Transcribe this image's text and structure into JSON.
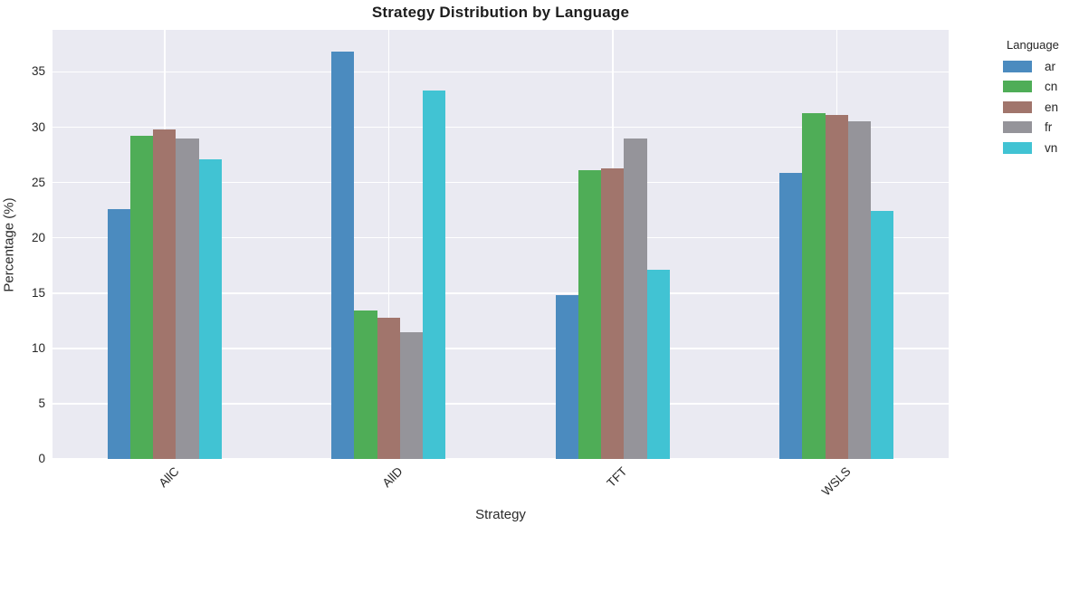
{
  "title": "Strategy Distribution by Language",
  "xlabel": "Strategy",
  "ylabel": "Percentage (%)",
  "legend": {
    "title": "Language",
    "entries": [
      {
        "label": "ar",
        "color": "#4b8bbf"
      },
      {
        "label": "cn",
        "color": "#4fad57"
      },
      {
        "label": "en",
        "color": "#a1756c"
      },
      {
        "label": "fr",
        "color": "#95949a"
      },
      {
        "label": "vn",
        "color": "#41c3d3"
      }
    ]
  },
  "chart_data": {
    "type": "bar",
    "title": "Strategy Distribution by Language",
    "xlabel": "Strategy",
    "ylabel": "Percentage (%)",
    "categories": [
      "AllC",
      "AllD",
      "TFT",
      "WSLS"
    ],
    "series": [
      {
        "name": "ar",
        "color": "#4b8bbf",
        "values": [
          22.6,
          36.8,
          14.8,
          25.9
        ]
      },
      {
        "name": "cn",
        "color": "#4fad57",
        "values": [
          29.2,
          13.4,
          26.1,
          31.3
        ]
      },
      {
        "name": "en",
        "color": "#a1756c",
        "values": [
          29.8,
          12.8,
          26.3,
          31.1
        ]
      },
      {
        "name": "fr",
        "color": "#95949a",
        "values": [
          29.0,
          11.5,
          29.0,
          30.5
        ]
      },
      {
        "name": "vn",
        "color": "#41c3d3",
        "values": [
          27.1,
          33.3,
          17.1,
          22.4
        ]
      }
    ],
    "ylim": [
      0,
      38.8
    ],
    "yticks": [
      0,
      5,
      10,
      15,
      20,
      25,
      30,
      35
    ],
    "grid": true,
    "grid_color": "#ffffff",
    "plot_bg": "#eaeaf2",
    "legend_position": "right",
    "legend_title": "Language"
  }
}
